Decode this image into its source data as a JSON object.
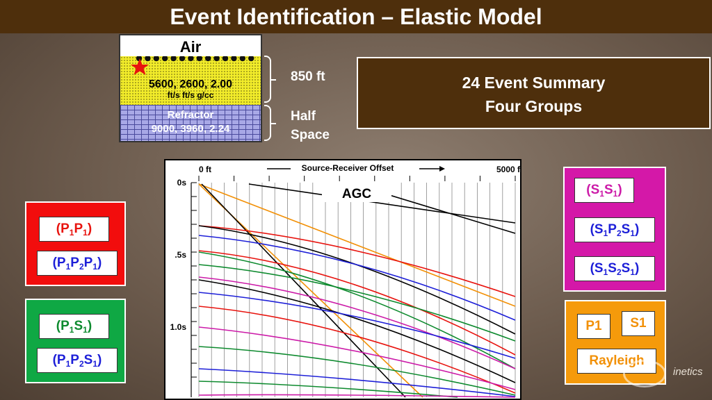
{
  "title": "Event Identification – Elastic Model",
  "model": {
    "air_label": "Air",
    "layer1": {
      "values": "5600, 2600,    2.00",
      "units": "ft/s     ft/s     g/cc"
    },
    "refractor": {
      "label": "Refractor",
      "values": "9000, 3960,   2.24"
    },
    "thickness_label": "850 ft",
    "halfspace_label": [
      "Half",
      "Space"
    ],
    "receiver_count": 14,
    "layer1_color": "#f2ec2a",
    "refractor_color": "#a8a8e6"
  },
  "summary": {
    "line1": "24 Event Summary",
    "line2": "Four Groups"
  },
  "seismogram": {
    "header": "Source-Receiver Offset",
    "offset_start": "0 ft",
    "offset_end": "5000 ft",
    "agc_label": "AGC",
    "time_ticks": [
      "0s",
      ".5s",
      "1.0s"
    ],
    "trace_count": 26,
    "event_colors": [
      "#e8130e",
      "#1d1fd8",
      "#0d8a2e",
      "#cc1aa8",
      "#f29006",
      "#000000"
    ]
  },
  "groups": {
    "pp": {
      "color": "#f20d0d",
      "items": [
        {
          "base": "P",
          "parts": [
            [
              "P",
              "1"
            ],
            [
              "P",
              "1"
            ]
          ],
          "color": "#e8130e"
        },
        {
          "parts": [
            [
              "P",
              "1"
            ],
            [
              "P",
              "2"
            ],
            [
              "P",
              "1"
            ]
          ],
          "color": "#1d1fd8"
        }
      ]
    },
    "ps": {
      "color": "#0fa844",
      "items": [
        {
          "parts": [
            [
              "P",
              "1"
            ],
            [
              "S",
              "1"
            ]
          ],
          "color": "#0d8a2e"
        },
        {
          "parts": [
            [
              "P",
              "1"
            ],
            [
              "P",
              "2"
            ],
            [
              "S",
              "1"
            ]
          ],
          "color": "#1d1fd8"
        }
      ]
    },
    "ss": {
      "color": "#d418a8",
      "items": [
        {
          "parts": [
            [
              "S",
              "1"
            ],
            [
              "S",
              "1"
            ]
          ],
          "color": "#cc1aa8"
        },
        {
          "parts": [
            [
              "S",
              "1"
            ],
            [
              "P",
              "2"
            ],
            [
              "S",
              "1"
            ]
          ],
          "color": "#1d1fd8"
        },
        {
          "parts": [
            [
              "S",
              "1"
            ],
            [
              "S",
              "2"
            ],
            [
              "S",
              "1"
            ]
          ],
          "color": "#1d1fd8"
        }
      ]
    },
    "direct": {
      "color": "#f59a0b",
      "items": [
        "P1",
        "S1",
        "Rayleigh"
      ]
    }
  },
  "logo_text": "inetics"
}
